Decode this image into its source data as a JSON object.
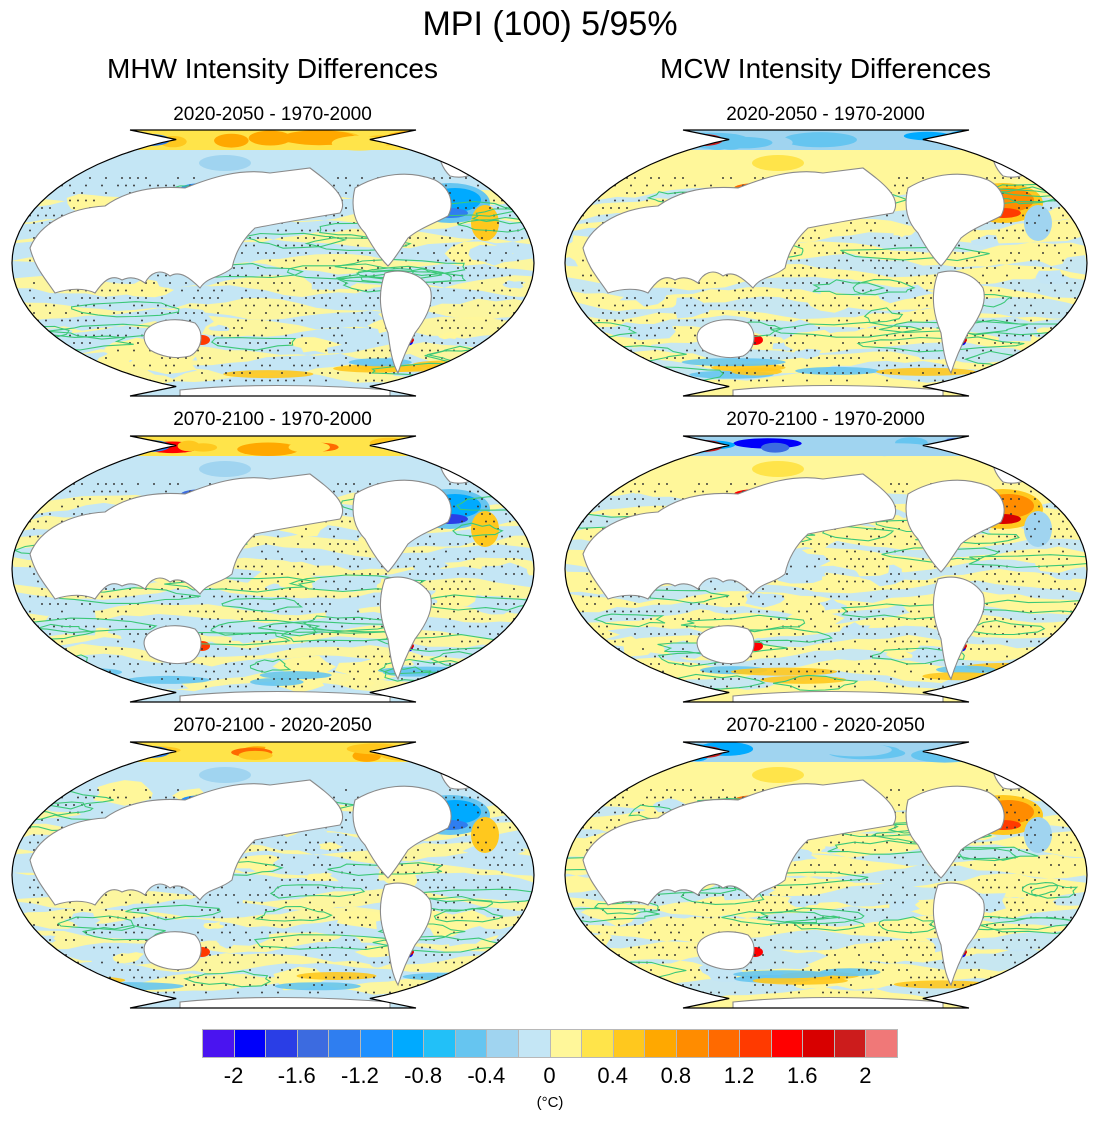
{
  "title": "MPI (100) 5/95%",
  "columns": [
    {
      "title": "MHW Intensity Differences"
    },
    {
      "title": "MCW Intensity Differences"
    }
  ],
  "colorbar": {
    "units": "(°C)",
    "labels": [
      "-2",
      "-1.6",
      "-1.2",
      "-0.8",
      "-0.4",
      "0",
      "0.4",
      "0.8",
      "1.2",
      "1.6",
      "2"
    ],
    "colors": [
      "#4a14f0",
      "#0000fa",
      "#2a3ee6",
      "#3c6be0",
      "#2f7ef0",
      "#1e90ff",
      "#00aaff",
      "#22c0f8",
      "#66c5f0",
      "#a0d4f0",
      "#c4e6f5",
      "#fff79a",
      "#ffe44a",
      "#ffc81e",
      "#ffa800",
      "#ff8c00",
      "#ff6a00",
      "#ff3a00",
      "#ff0000",
      "#d80000",
      "#cc1c1c",
      "#f07878"
    ]
  },
  "chart_data": {
    "type": "heatmap",
    "title": "MPI (100) 5/95%",
    "projection": "Robinson (Pacific-centered) global ocean maps",
    "value_range": [
      -2.2,
      2.2
    ],
    "levels": [
      -2,
      -1.8,
      -1.6,
      -1.4,
      -1.2,
      -1.0,
      -0.8,
      -0.6,
      -0.4,
      -0.2,
      0,
      0.2,
      0.4,
      0.6,
      0.8,
      1.0,
      1.2,
      1.4,
      1.6,
      1.8,
      2.0
    ],
    "units": "°C",
    "overlays": [
      "stippling (significance)",
      "green contour lines",
      "gray coastlines"
    ],
    "panels": [
      {
        "column": "MHW Intensity Differences",
        "row": 1,
        "subtitle": "2020-2050 - 1970-2000",
        "dominant_range": [
          -0.2,
          0.2
        ],
        "arctic": "warm (+0.4 to +1.6)",
        "north_atlantic": "cool (-0.4 to -1.6)"
      },
      {
        "column": "MCW Intensity Differences",
        "row": 1,
        "subtitle": "2020-2050 - 1970-2000",
        "dominant_range": [
          -0.2,
          0.2
        ],
        "arctic": "cool (-0.4 to -1.6)",
        "north_atlantic": "warm (+0.4 to +1.6)"
      },
      {
        "column": "MHW Intensity Differences",
        "row": 2,
        "subtitle": "2070-2100 - 1970-2000",
        "dominant_range": [
          -0.4,
          0.2
        ],
        "arctic": "warm (+0.8 to +2)",
        "north_atlantic": "cool (-0.8 to -2)"
      },
      {
        "column": "MCW Intensity Differences",
        "row": 2,
        "subtitle": "2070-2100 - 1970-2000",
        "dominant_range": [
          -0.2,
          0.4
        ],
        "arctic": "cool (-0.8 to -2)",
        "north_atlantic": "warm (+0.8 to +2)"
      },
      {
        "column": "MHW Intensity Differences",
        "row": 3,
        "subtitle": "2070-2100 - 2020-2050",
        "dominant_range": [
          -0.4,
          0.2
        ],
        "arctic": "warm (+0.4 to +1.2)",
        "north_atlantic": "cool (-0.4 to -1.2)"
      },
      {
        "column": "MCW Intensity Differences",
        "row": 3,
        "subtitle": "2070-2100 - 2020-2050",
        "dominant_range": [
          -0.2,
          0.4
        ],
        "arctic": "cool (-0.4 to -1.2)",
        "north_atlantic": "warm (+0.4 to +1.6)"
      }
    ]
  },
  "panels": [
    {
      "subtitle": "2020-2050 - 1970-2000",
      "variant": "mhw",
      "strength": 1
    },
    {
      "subtitle": "2020-2050 - 1970-2000",
      "variant": "mcw",
      "strength": 1
    },
    {
      "subtitle": "2070-2100 - 1970-2000",
      "variant": "mhw",
      "strength": 2
    },
    {
      "subtitle": "2070-2100 - 1970-2000",
      "variant": "mcw",
      "strength": 2
    },
    {
      "subtitle": "2070-2100 - 2020-2050",
      "variant": "mhw",
      "strength": 1.5
    },
    {
      "subtitle": "2070-2100 - 2020-2050",
      "variant": "mcw",
      "strength": 1.5
    }
  ]
}
